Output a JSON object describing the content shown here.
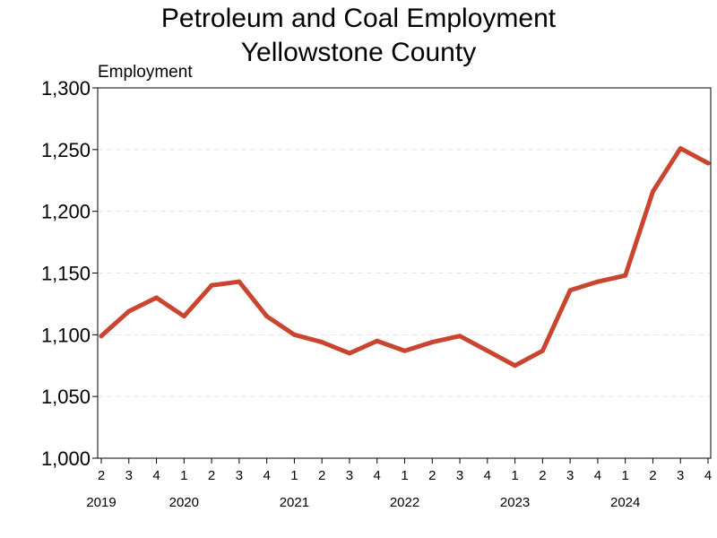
{
  "chart_data": {
    "type": "line",
    "title": [
      "Petroleum and Coal Employment",
      "Yellowstone County"
    ],
    "ylabel": "Employment",
    "xlabel": "",
    "ylim": [
      1000,
      1300
    ],
    "yticks": [
      1000,
      1050,
      1100,
      1150,
      1200,
      1250,
      1300
    ],
    "ytick_labels": [
      "1,000",
      "1,050",
      "1,100",
      "1,150",
      "1,200",
      "1,250",
      "1,300"
    ],
    "grid": "horizontal dashed",
    "color": "#c9452f",
    "x": [
      "2",
      "3",
      "4",
      "1",
      "2",
      "3",
      "4",
      "1",
      "2",
      "3",
      "4",
      "1",
      "2",
      "3",
      "4",
      "1",
      "2",
      "3",
      "4",
      "1",
      "2",
      "3",
      "4"
    ],
    "year_labels": [
      {
        "label": "2019",
        "at_index": 0
      },
      {
        "label": "2020",
        "at_index": 3
      },
      {
        "label": "2021",
        "at_index": 7
      },
      {
        "label": "2022",
        "at_index": 11
      },
      {
        "label": "2023",
        "at_index": 15
      },
      {
        "label": "2024",
        "at_index": 19
      }
    ],
    "series": [
      {
        "name": "Employment",
        "values": [
          1099,
          1119,
          1130,
          1115,
          1140,
          1143,
          1115,
          1100,
          1094,
          1085,
          1095,
          1087,
          1094,
          1099,
          1087,
          1075,
          1087,
          1136,
          1143,
          1148,
          1216,
          1251,
          1239
        ]
      }
    ]
  }
}
